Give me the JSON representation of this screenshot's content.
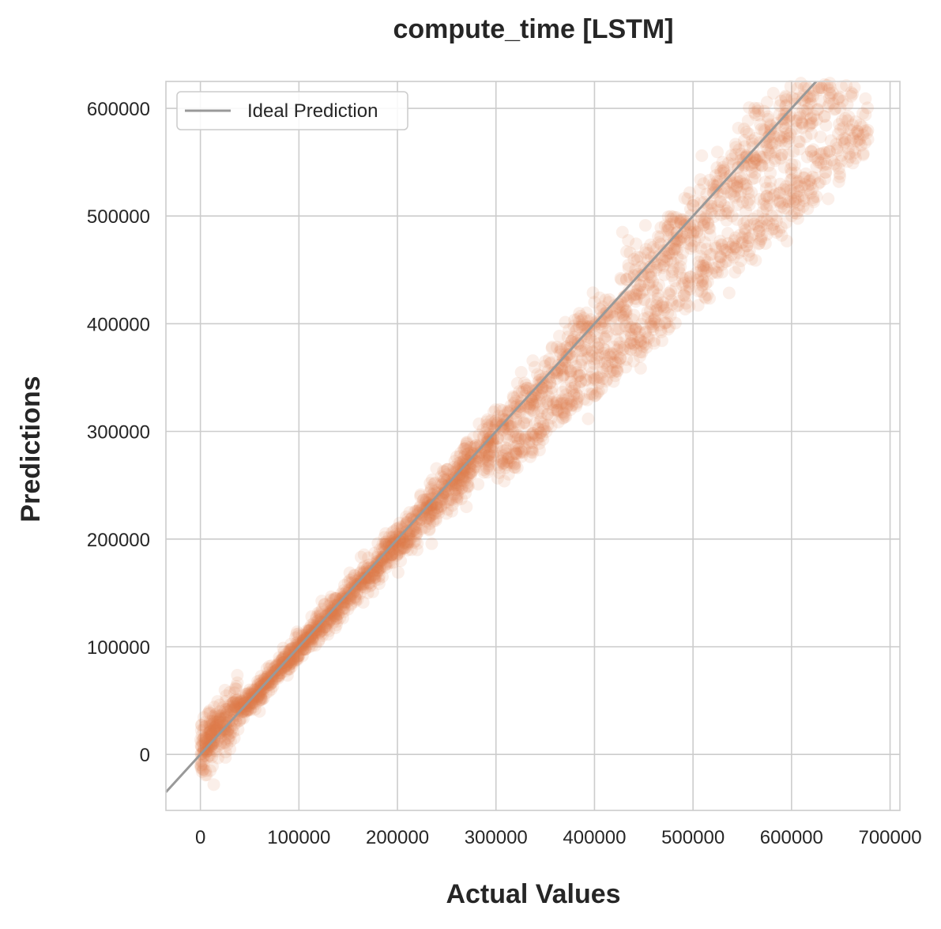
{
  "colors": {
    "points": "#e07b4a",
    "ideal_line": "#999999",
    "grid": "#cccccc",
    "frame": "#cccccc",
    "text": "#262626",
    "background": "#ffffff"
  },
  "chart_data": {
    "type": "scatter",
    "title": "compute_time [LSTM]",
    "xlabel": "Actual Values",
    "ylabel": "Predictions",
    "xlim": [
      -35000,
      710000
    ],
    "ylim": [
      -52000,
      625000
    ],
    "xticks": [
      0,
      100000,
      200000,
      300000,
      400000,
      500000,
      600000,
      700000
    ],
    "xtick_labels": [
      "0",
      "100000",
      "200000",
      "300000",
      "400000",
      "500000",
      "600000",
      "700000"
    ],
    "yticks": [
      0,
      100000,
      200000,
      300000,
      400000,
      500000,
      600000
    ],
    "ytick_labels": [
      "0",
      "100000",
      "200000",
      "300000",
      "400000",
      "500000",
      "600000"
    ],
    "grid": true,
    "legend": {
      "position": "top-left",
      "entries": [
        "Ideal Prediction"
      ]
    },
    "ideal_line": {
      "name": "Ideal Prediction",
      "slope": 1,
      "intercept": 0
    },
    "scatter_series": {
      "point_opacity": 0.12,
      "approximate_point_count": 3000,
      "x_range": [
        0,
        678000
      ],
      "y_range": [
        -20000,
        594000
      ],
      "main_band": "predictions close to actual values along y = x, spread widening with magnitude",
      "lower_branch": "above ~300000 actual a second band runs below the line, about 0.85 × actual",
      "sample_points": [
        [
          5000,
          30000
        ],
        [
          10000,
          -15000
        ],
        [
          20000,
          40000
        ],
        [
          30000,
          5000
        ],
        [
          50000,
          60000
        ],
        [
          60000,
          40000
        ],
        [
          80000,
          90000
        ],
        [
          100000,
          110000
        ],
        [
          120000,
          105000
        ],
        [
          150000,
          160000
        ],
        [
          170000,
          150000
        ],
        [
          200000,
          210000
        ],
        [
          220000,
          190000
        ],
        [
          250000,
          260000
        ],
        [
          270000,
          230000
        ],
        [
          300000,
          310000
        ],
        [
          320000,
          280000
        ],
        [
          350000,
          365000
        ],
        [
          370000,
          315000
        ],
        [
          400000,
          420000
        ],
        [
          420000,
          355000
        ],
        [
          440000,
          460000
        ],
        [
          460000,
          400000
        ],
        [
          480000,
          480000
        ],
        [
          500000,
          510000
        ],
        [
          510000,
          440000
        ],
        [
          530000,
          550000
        ],
        [
          550000,
          480000
        ],
        [
          560000,
          570000
        ],
        [
          580000,
          500000
        ],
        [
          600000,
          540000
        ],
        [
          620000,
          560000
        ],
        [
          640000,
          570000
        ],
        [
          660000,
          580000
        ],
        [
          675000,
          594000
        ],
        [
          590000,
          482000
        ]
      ]
    }
  }
}
